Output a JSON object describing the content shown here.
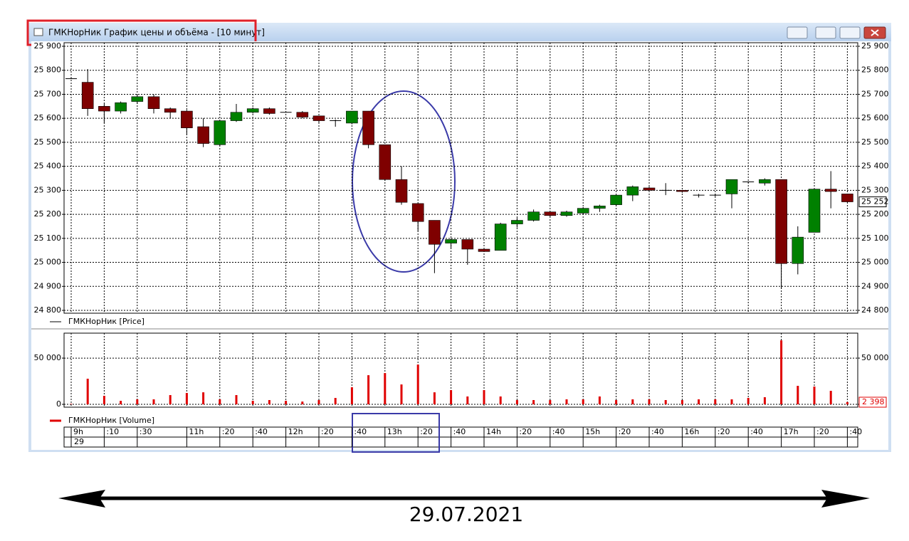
{
  "window": {
    "title": "ГМКНорНик График цены и объёма - [10 минут]"
  },
  "date_row": "29",
  "annotation": "29.07.2021",
  "chart_data": [
    {
      "type": "candlestick",
      "name": "ГМКНорНик [Price]",
      "categories": [
        "9h",
        null,
        ":10",
        null,
        ":30",
        null,
        null,
        "11h",
        null,
        ":20",
        null,
        ":40",
        null,
        "12h",
        null,
        ":20",
        null,
        ":40",
        null,
        "13h",
        null,
        ":20",
        null,
        ":40",
        null,
        "14h",
        null,
        ":20",
        null,
        ":40",
        null,
        "15h",
        null,
        ":20",
        null,
        ":40",
        null,
        "16h",
        null,
        ":20",
        null,
        ":40",
        null,
        "17h",
        null,
        ":20",
        null,
        ":40"
      ],
      "open": [
        25765,
        25750,
        25650,
        25630,
        25670,
        25690,
        25640,
        25630,
        25565,
        25490,
        25590,
        25625,
        25640,
        25625,
        25625,
        25610,
        25590,
        25580,
        25630,
        25490,
        25345,
        25245,
        25175,
        25080,
        25095,
        25055,
        25050,
        25160,
        25175,
        25210,
        25195,
        25205,
        25225,
        25240,
        25280,
        25310,
        25300,
        25300,
        25280,
        25280,
        25285,
        25335,
        25330,
        25345,
        24995,
        25125,
        25305,
        25285
      ],
      "high": [
        25765,
        25805,
        25660,
        25670,
        25700,
        25700,
        25645,
        25635,
        25600,
        25590,
        25660,
        25645,
        25645,
        25628,
        25630,
        25610,
        25595,
        25630,
        25630,
        25490,
        25400,
        25245,
        25175,
        25100,
        25095,
        25055,
        25165,
        25185,
        25220,
        25210,
        25215,
        25230,
        25240,
        25280,
        25320,
        25315,
        25330,
        25300,
        25285,
        25285,
        25345,
        25335,
        25350,
        25345,
        25150,
        25305,
        25380,
        25285
      ],
      "low": [
        25765,
        25610,
        25580,
        25620,
        25660,
        25620,
        25600,
        25530,
        25480,
        25485,
        25585,
        25620,
        25615,
        25625,
        25600,
        25580,
        25565,
        25575,
        25475,
        25340,
        25240,
        25130,
        24955,
        25060,
        24990,
        25045,
        25050,
        25145,
        25170,
        25190,
        25190,
        25200,
        25210,
        25235,
        25255,
        25295,
        25280,
        25290,
        25270,
        25275,
        25225,
        25330,
        25320,
        24890,
        24950,
        25125,
        25225,
        25250
      ],
      "close": [
        25765,
        25640,
        25630,
        25665,
        25690,
        25640,
        25625,
        25560,
        25495,
        25590,
        25625,
        25640,
        25620,
        25625,
        25605,
        25590,
        25590,
        25630,
        25490,
        25345,
        25250,
        25170,
        25075,
        25095,
        25055,
        25045,
        25160,
        25175,
        25210,
        25195,
        25210,
        25225,
        25235,
        25280,
        25315,
        25300,
        25300,
        25295,
        25280,
        25280,
        25345,
        25335,
        25345,
        24995,
        25105,
        25305,
        25295,
        25252
      ],
      "last_label": "25 252",
      "up_color": "#008000",
      "down_color": "#7f0000",
      "ylim": [
        24800,
        25900
      ],
      "yticks": [
        {
          "value": 24800,
          "label": "24 800"
        },
        {
          "value": 24900,
          "label": "24 900"
        },
        {
          "value": 25000,
          "label": "25 000"
        },
        {
          "value": 25100,
          "label": "25 100"
        },
        {
          "value": 25200,
          "label": "25 200"
        },
        {
          "value": 25300,
          "label": "25 300"
        },
        {
          "value": 25400,
          "label": "25 400"
        },
        {
          "value": 25500,
          "label": "25 500"
        },
        {
          "value": 25600,
          "label": "25 600"
        },
        {
          "value": 25700,
          "label": "25 700"
        },
        {
          "value": 25800,
          "label": "25 800"
        },
        {
          "value": 25900,
          "label": "25 900"
        }
      ],
      "grid": true
    },
    {
      "type": "bar",
      "name": "ГМКНорНик [Volume]",
      "color": "#e00000",
      "values": [
        500,
        27700,
        9200,
        3800,
        5400,
        5400,
        10000,
        12300,
        13000,
        5400,
        10000,
        3800,
        4600,
        3800,
        3000,
        4600,
        6900,
        18500,
        31500,
        33800,
        21500,
        43000,
        13000,
        15400,
        8500,
        15400,
        8500,
        4600,
        4600,
        4600,
        5400,
        5400,
        8500,
        4600,
        5400,
        5400,
        4600,
        4600,
        5400,
        5400,
        5400,
        6900,
        7700,
        69200,
        20000,
        19200,
        14600,
        2398
      ],
      "last_label": "2 398",
      "ylim": [
        0,
        77000
      ],
      "yticks": [
        0,
        {
          "value": 50000,
          "label": "50 000"
        }
      ],
      "grid": true
    }
  ]
}
